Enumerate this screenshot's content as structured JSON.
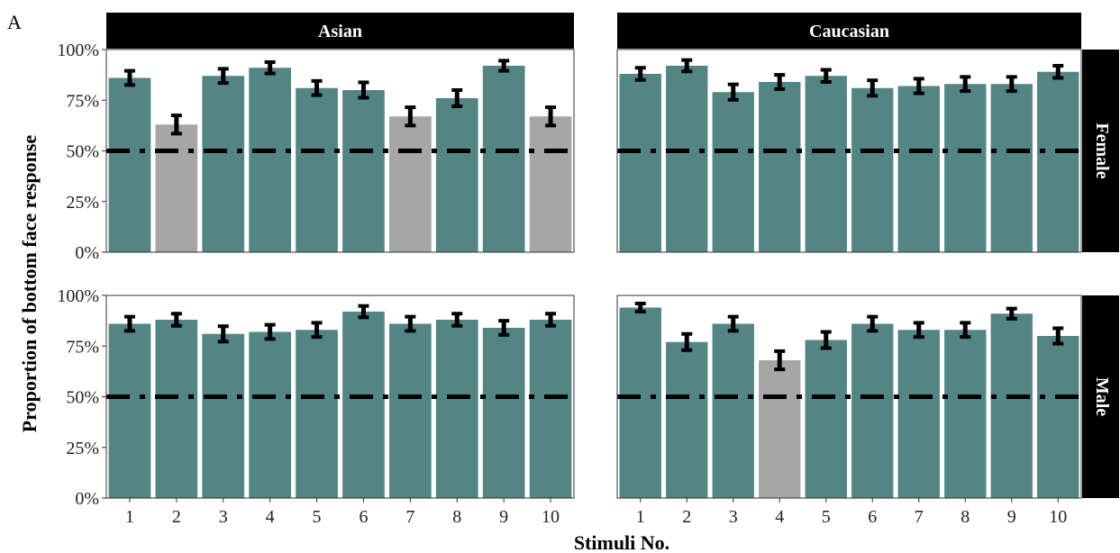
{
  "panel_label": "A",
  "chart_data": {
    "type": "bar",
    "xlabel": "Stimuli No.",
    "ylabel": "Proportion of bottom face response",
    "ylim": [
      0,
      1
    ],
    "yticks": [
      "0%",
      "25%",
      "50%",
      "75%",
      "100%"
    ],
    "categories": [
      "1",
      "2",
      "3",
      "4",
      "5",
      "6",
      "7",
      "8",
      "9",
      "10"
    ],
    "reference_line": 0.5,
    "colors": {
      "significant": "#548585",
      "nonsignificant": "#a6a6a6",
      "strip": "#000000"
    },
    "columns": [
      "Asian",
      "Caucasian"
    ],
    "rows": [
      "Female",
      "Male"
    ],
    "panels": [
      {
        "column": "Asian",
        "row": "Female",
        "values": [
          0.86,
          0.63,
          0.87,
          0.91,
          0.81,
          0.8,
          0.67,
          0.76,
          0.92,
          0.67
        ],
        "errors": [
          0.035,
          0.045,
          0.035,
          0.028,
          0.035,
          0.038,
          0.045,
          0.04,
          0.025,
          0.045
        ],
        "significant": [
          true,
          false,
          true,
          true,
          true,
          true,
          false,
          true,
          true,
          false
        ]
      },
      {
        "column": "Caucasian",
        "row": "Female",
        "values": [
          0.88,
          0.92,
          0.79,
          0.84,
          0.87,
          0.81,
          0.82,
          0.83,
          0.83,
          0.89
        ],
        "errors": [
          0.03,
          0.028,
          0.038,
          0.035,
          0.03,
          0.038,
          0.036,
          0.035,
          0.035,
          0.03
        ],
        "significant": [
          true,
          true,
          true,
          true,
          true,
          true,
          true,
          true,
          true,
          true
        ]
      },
      {
        "column": "Asian",
        "row": "Male",
        "values": [
          0.86,
          0.88,
          0.81,
          0.82,
          0.83,
          0.92,
          0.86,
          0.88,
          0.84,
          0.88
        ],
        "errors": [
          0.035,
          0.03,
          0.038,
          0.035,
          0.035,
          0.028,
          0.035,
          0.03,
          0.035,
          0.03
        ],
        "significant": [
          true,
          true,
          true,
          true,
          true,
          true,
          true,
          true,
          true,
          true
        ]
      },
      {
        "column": "Caucasian",
        "row": "Male",
        "values": [
          0.94,
          0.77,
          0.86,
          0.68,
          0.78,
          0.86,
          0.83,
          0.83,
          0.91,
          0.8
        ],
        "errors": [
          0.02,
          0.04,
          0.035,
          0.045,
          0.04,
          0.035,
          0.035,
          0.035,
          0.025,
          0.038
        ],
        "significant": [
          true,
          true,
          true,
          false,
          true,
          true,
          true,
          true,
          true,
          true
        ]
      }
    ]
  }
}
